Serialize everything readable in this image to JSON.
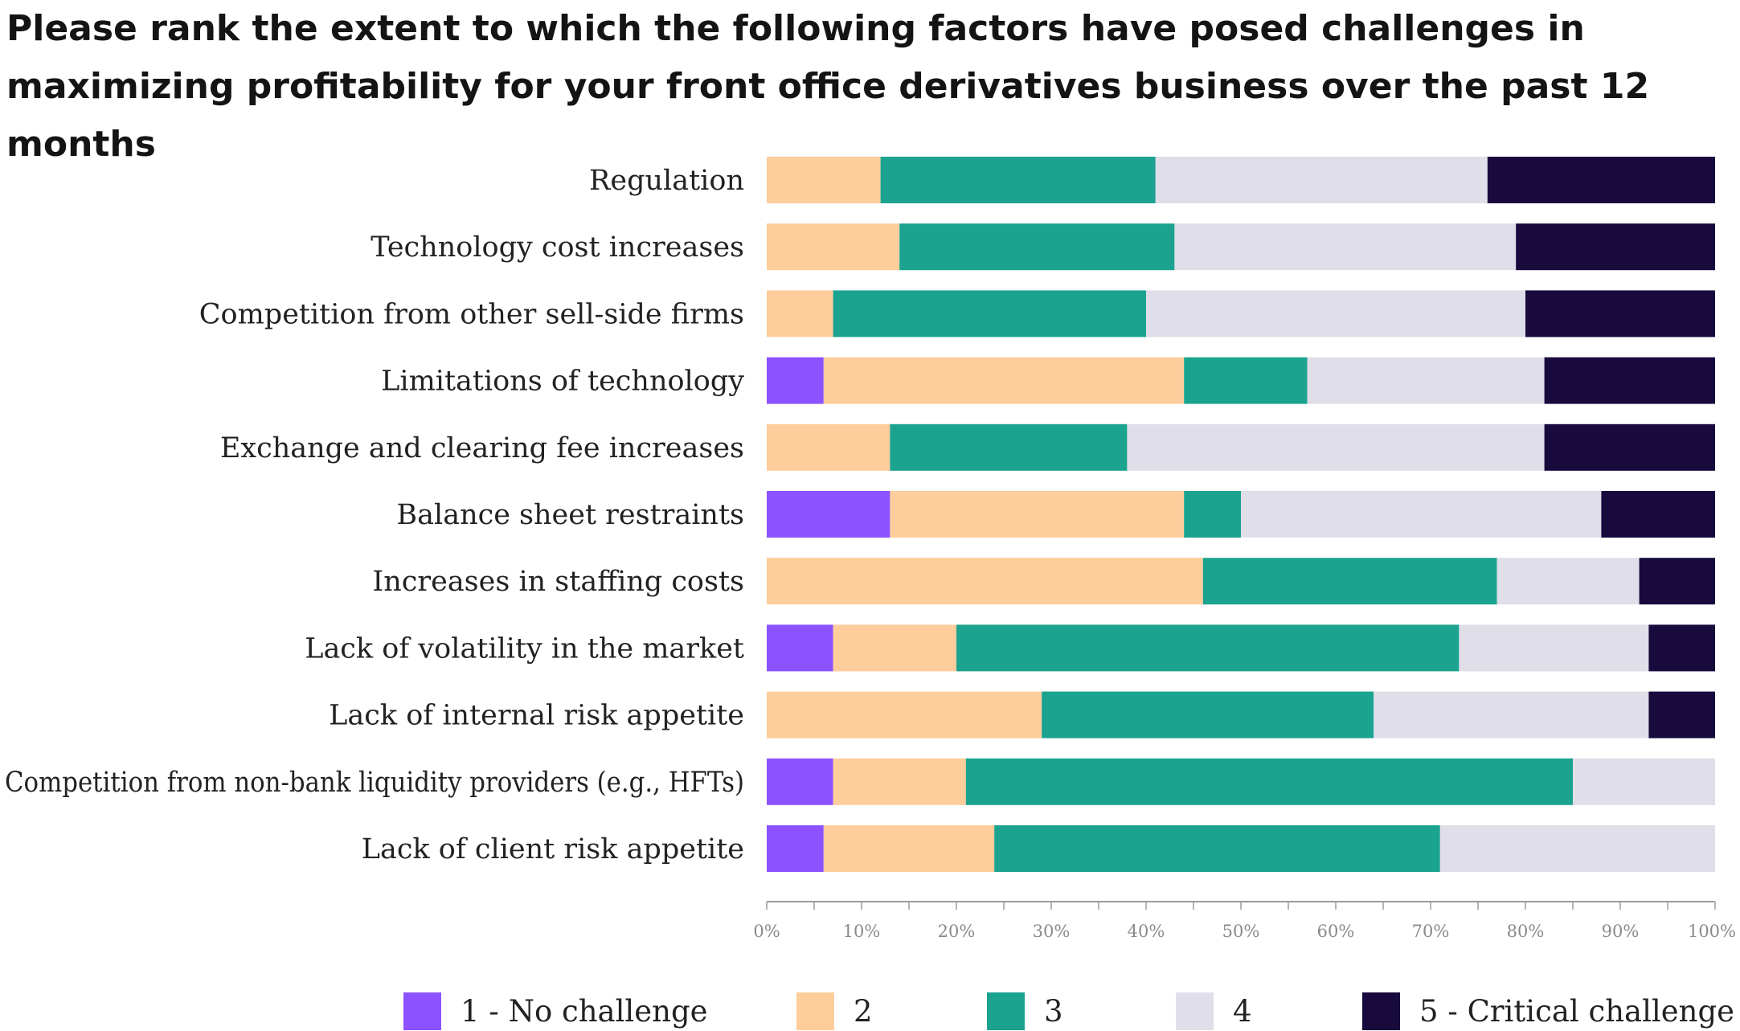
{
  "title": "Please rank the extent to which the following factors have posed challenges in maximizing profitability for your front office derivatives business over the past 12 months",
  "chart_data": {
    "type": "bar",
    "orientation": "horizontal",
    "stacked": "percent",
    "title": "Please rank the extent to which the following factors have posed challenges in maximizing profitability for your front office derivatives business over the past 12 months",
    "categories": [
      "Regulation",
      "Technology cost increases",
      "Competition from other sell-side firms",
      "Limitations of technology",
      "Exchange and clearing fee increases",
      "Balance sheet restraints",
      "Increases in staffing costs",
      "Lack of volatility in the market",
      "Lack of internal risk appetite",
      "Competition from non-bank liquidity providers (e.g., HFTs)",
      "Lack of client risk appetite"
    ],
    "series": [
      {
        "name": "1 - No challenge",
        "color": "#8c52ff",
        "values": [
          0,
          0,
          0,
          6,
          0,
          13,
          0,
          7,
          0,
          7,
          6
        ]
      },
      {
        "name": "2",
        "color": "#fdcd9b",
        "values": [
          12,
          14,
          7,
          38,
          13,
          31,
          46,
          13,
          29,
          14,
          18
        ]
      },
      {
        "name": "3",
        "color": "#1ba38f",
        "values": [
          29,
          29,
          33,
          13,
          25,
          6,
          31,
          53,
          35,
          64,
          47
        ]
      },
      {
        "name": "4",
        "color": "#dfdee9",
        "values": [
          35,
          36,
          40,
          25,
          44,
          38,
          15,
          20,
          29,
          15,
          29
        ]
      },
      {
        "name": "5 - Critical challenge",
        "color": "#180a3d",
        "values": [
          24,
          21,
          20,
          18,
          18,
          12,
          8,
          7,
          7,
          0,
          0
        ]
      }
    ],
    "xlim": [
      0,
      100
    ],
    "xticks": [
      "0%",
      "10%",
      "20%",
      "30%",
      "40%",
      "50%",
      "60%",
      "70%",
      "80%",
      "90%",
      "100%"
    ],
    "legend_position": "bottom",
    "grid": false
  }
}
